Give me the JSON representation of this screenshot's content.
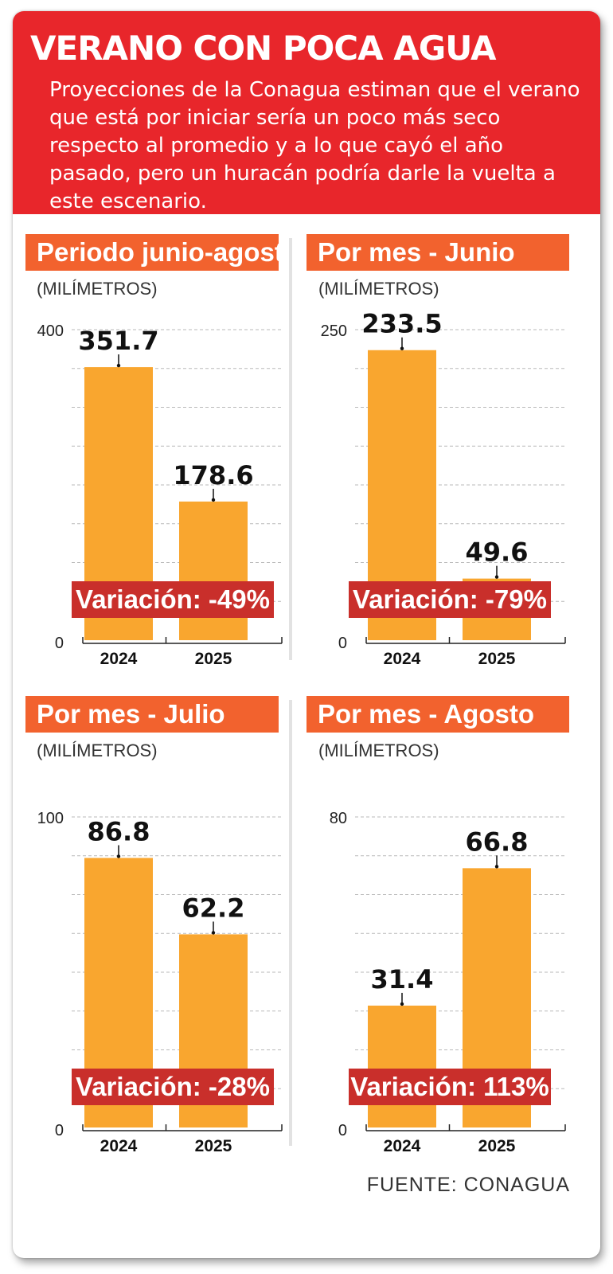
{
  "header": {
    "title": "VERANO CON POCA AGUA",
    "subtitle": "Proyecciones de la Conagua estiman que el verano que está por iniciar sería un poco más seco respecto al promedio y a lo que cayó el año pasado, pero un huracán podría darle la vuelta a este escenario."
  },
  "source": "FUENTE: CONAGUA",
  "colors": {
    "header_bg": "#e8262b",
    "panel_title_bg": "#f2622e",
    "bar": "#f9a62f",
    "variation_bg": "#c92f2b"
  },
  "chart_data": [
    {
      "type": "bar",
      "title": "Periodo junio-agosto",
      "unit_label": "(MILÍMETROS)",
      "categories": [
        "2024",
        "2025"
      ],
      "values": [
        351.7,
        178.6
      ],
      "value_labels": [
        "351.7",
        "178.6"
      ],
      "ylim": [
        0,
        400
      ],
      "ytick_labels": [
        "0",
        "400"
      ],
      "variation": "Variación: -49%",
      "grid": true
    },
    {
      "type": "bar",
      "title": "Por mes - Junio",
      "unit_label": "(MILÍMETROS)",
      "categories": [
        "2024",
        "2025"
      ],
      "values": [
        233.5,
        49.6
      ],
      "value_labels": [
        "233.5",
        "49.6"
      ],
      "ylim": [
        0,
        250
      ],
      "ytick_labels": [
        "0",
        "250"
      ],
      "variation": "Variación: -79%",
      "grid": true
    },
    {
      "type": "bar",
      "title": "Por mes - Julio",
      "unit_label": "(MILÍMETROS)",
      "categories": [
        "2024",
        "2025"
      ],
      "values": [
        86.8,
        62.2
      ],
      "value_labels": [
        "86.8",
        "62.2"
      ],
      "ylim": [
        0,
        100
      ],
      "ytick_labels": [
        "0",
        "100"
      ],
      "variation": "Variación: -28%",
      "grid": true
    },
    {
      "type": "bar",
      "title": "Por mes - Agosto",
      "unit_label": "(MILÍMETROS)",
      "categories": [
        "2024",
        "2025"
      ],
      "values": [
        31.4,
        66.8
      ],
      "value_labels": [
        "31.4",
        "66.8"
      ],
      "ylim": [
        0,
        80
      ],
      "ytick_labels": [
        "0",
        "80"
      ],
      "variation": "Variación: 113%",
      "grid": true
    }
  ]
}
